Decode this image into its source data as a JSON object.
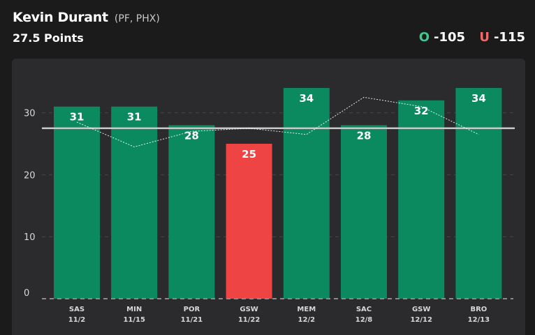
{
  "header": {
    "player_name": "Kevin Durant",
    "player_meta": "(PF, PHX)",
    "prop": "27.5 Points",
    "over_letter": "O",
    "over_odds": "-105",
    "under_letter": "U",
    "under_odds": "-115"
  },
  "colors": {
    "over": "#0b8a5f",
    "under": "#ef4444",
    "line": "#c8c8c8",
    "trend": "#ffffff"
  },
  "chart_data": {
    "type": "bar",
    "title": "Kevin Durant 27.5 Points",
    "categories": [
      "SAS",
      "MIN",
      "POR",
      "GSW",
      "MEM",
      "SAC",
      "GSW",
      "BRO"
    ],
    "dates": [
      "11/2",
      "11/15",
      "11/21",
      "11/22",
      "12/2",
      "12/8",
      "12/12",
      "12/13"
    ],
    "values": [
      31,
      31,
      28,
      25,
      34,
      28,
      32,
      34
    ],
    "trend_values": [
      28.5,
      24.5,
      27,
      27.5,
      26.5,
      32.5,
      31,
      26.5
    ],
    "prop_line": 27.5,
    "ylim": [
      0,
      37
    ],
    "yticks": [
      0,
      10,
      20,
      30
    ],
    "xlabel": "",
    "ylabel": ""
  }
}
